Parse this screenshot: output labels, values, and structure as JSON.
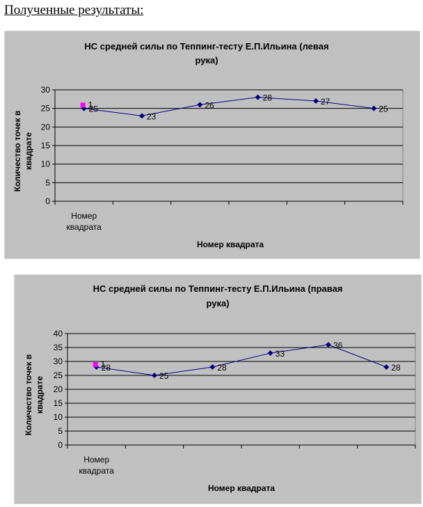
{
  "heading": "Полученные результаты:",
  "chart_data": [
    {
      "type": "line",
      "title_line1": "НС средней силы по Теппинг-тесту  Е.П.Ильина (левая",
      "title_line2": "рука)",
      "xlabel": "Номер квадрата",
      "ylabel_line1": "Количество точек в",
      "ylabel_line2": "квадрате",
      "category_line1": "Номер",
      "category_line2": "квадрата",
      "ylim": [
        0,
        30
      ],
      "yticks": [
        "0",
        "5",
        "10",
        "15",
        "20",
        "25",
        "30"
      ],
      "grid": true,
      "series_values": [
        25,
        23,
        26,
        28,
        27,
        25
      ],
      "data_labels": [
        "25",
        "23",
        "26",
        "28",
        "27",
        "25"
      ],
      "marker_value": 26,
      "marker_label": "1",
      "line_color": "#000080",
      "marker_color": "#ff00ff",
      "plot_bg": "#c0c0c0"
    },
    {
      "type": "line",
      "title_line1": "НС средней силы по Теппинг-тесту  Е.П.Ильина (правая",
      "title_line2": "рука)",
      "xlabel": "Номер квадрата",
      "ylabel_line1": "Количество точек в",
      "ylabel_line2": "квадрате",
      "category_line1": "Номер",
      "category_line2": "квадрата",
      "ylim": [
        0,
        40
      ],
      "yticks": [
        "0",
        "5",
        "10",
        "15",
        "20",
        "25",
        "30",
        "35",
        "40"
      ],
      "grid": true,
      "series_values": [
        28,
        25,
        28,
        33,
        36,
        28
      ],
      "data_labels": [
        "28",
        "25",
        "28",
        "33",
        "36",
        "28"
      ],
      "marker_value": 29,
      "marker_label": "1",
      "line_color": "#000080",
      "marker_color": "#ff00ff",
      "plot_bg": "#c0c0c0"
    }
  ]
}
